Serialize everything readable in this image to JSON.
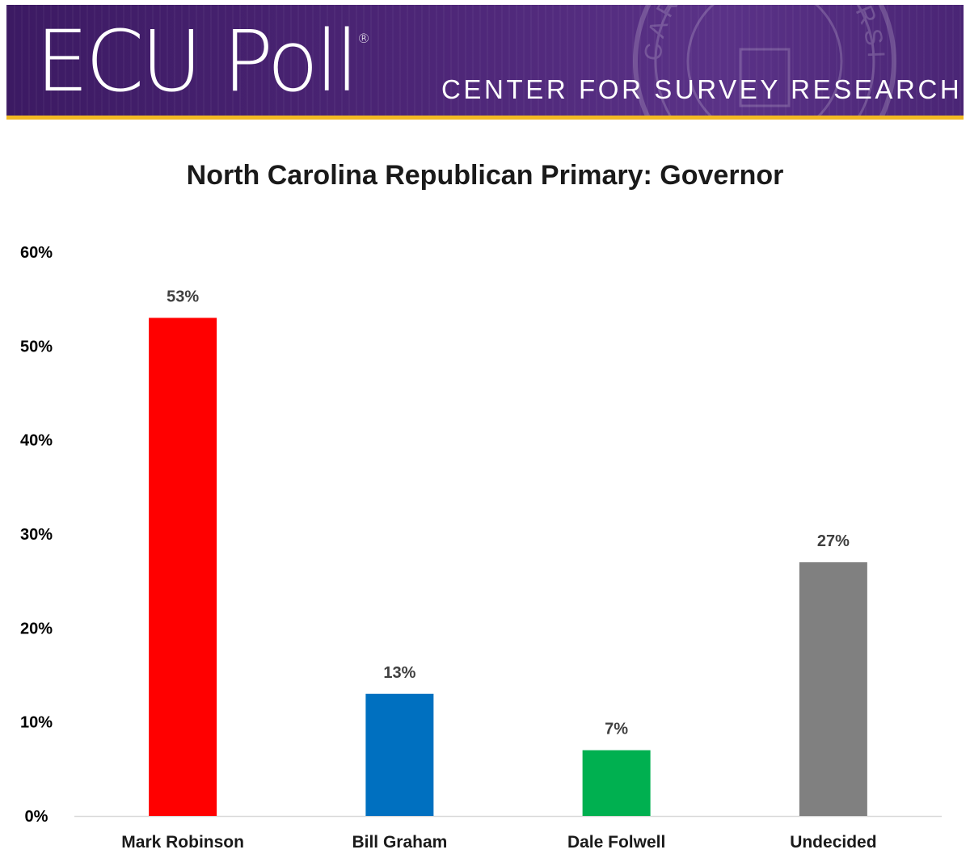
{
  "header": {
    "logo_text": "ECU Poll",
    "logo_mark": "®",
    "tagline": "CENTER FOR SURVEY RESEARCH",
    "background_color": "#4b2477",
    "accent_color": "#f2b922",
    "seal_icon": "university-seal-icon",
    "seal_text": "CAROLINA UNIVERSITY"
  },
  "chart_data": {
    "type": "bar",
    "title": "North Carolina Republican Primary: Governor",
    "xlabel": "",
    "ylabel": "",
    "categories": [
      "Mark Robinson",
      "Bill Graham",
      "Dale Folwell",
      "Undecided"
    ],
    "values": [
      53,
      13,
      7,
      27
    ],
    "value_labels": [
      "53%",
      "13%",
      "7%",
      "27%"
    ],
    "colors": [
      "#ff0000",
      "#0070c0",
      "#00b050",
      "#808080"
    ],
    "ylim": [
      0,
      60
    ],
    "yticks": [
      0,
      10,
      20,
      30,
      40,
      50,
      60
    ],
    "ytick_labels": [
      "0%",
      "10%",
      "20%",
      "30%",
      "40%",
      "50%",
      "60%"
    ],
    "grid": false,
    "legend": "none"
  }
}
